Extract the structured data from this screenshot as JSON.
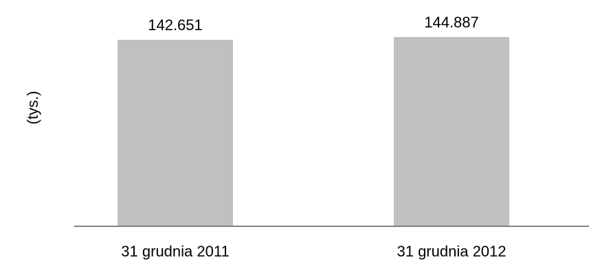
{
  "chart_data": {
    "type": "bar",
    "categories": [
      "31 grudnia 2011",
      "31 grudnia 2012"
    ],
    "values": [
      142651,
      144887
    ],
    "data_labels": [
      "142.651",
      "144.887"
    ],
    "ylabel": "(tys.)",
    "grid": false,
    "legend": "none",
    "colors": {
      "bar": "#c0c0c0",
      "axis": "#808080"
    }
  }
}
